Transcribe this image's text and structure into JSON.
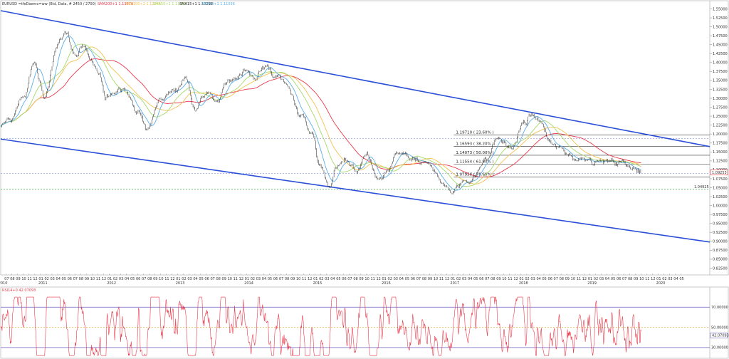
{
  "header": {
    "symbol_line": "EURUSD =tfeDaemo=ww (Bid, Data, # 2450 / 2700)",
    "sma200": "SMA200+1 1.13679",
    "sma100": "SMA100+1 1.12345",
    "sma50": "SMA50+1 1.11002",
    "sma15": "SMA15+1 1.10298",
    "sma10": "SMA10+1 1.11036",
    "rsi_label": "RSI14+0 42.07093"
  },
  "colors": {
    "price": "#1a1a1a",
    "sma200": "#e8394a",
    "sma100": "#f2c14e",
    "sma50": "#a6d96a",
    "sma15": "#5aaee8",
    "channel": "#2b4fd8",
    "rsi": "#e8394a",
    "fib": "#333333",
    "hline_blue": "#7d8fe0",
    "hline_green": "#3aa64a"
  },
  "chart_data": [
    {
      "type": "line",
      "title": "",
      "yaxis_ticks": [
        "1.55000",
        "1.52500",
        "1.50000",
        "1.47500",
        "1.45000",
        "1.42500",
        "1.40000",
        "1.37500",
        "1.35000",
        "1.32500",
        "1.30000",
        "1.27500",
        "1.25000",
        "1.22500",
        "1.20000",
        "1.17500",
        "1.15000",
        "1.12500",
        "1.10000",
        "1.07500",
        "1.05000",
        "1.02500",
        "1.00000",
        "0.97500",
        "0.95000",
        "0.92500",
        "0.90000",
        "0.87500",
        "0.85000",
        "0.82500"
      ],
      "ylim": [
        0.81,
        1.555
      ],
      "xlim": [
        2010.42,
        2020.75
      ],
      "year_labels": [
        "2010",
        "2011",
        "2012",
        "2013",
        "2014",
        "2015",
        "2016",
        "2017",
        "2018",
        "2019",
        "2020"
      ],
      "month_ticks": [
        "06",
        "07",
        "08",
        "09",
        "10",
        "11",
        "12",
        "01",
        "02",
        "03",
        "04",
        "05",
        "06",
        "07",
        "08",
        "09",
        "10",
        "11",
        "12",
        "01",
        "02",
        "03",
        "04",
        "05",
        "06",
        "07",
        "08",
        "09",
        "10",
        "11",
        "12",
        "01",
        "02",
        "03",
        "04",
        "05",
        "06",
        "07",
        "08",
        "09",
        "10",
        "11",
        "12",
        "01",
        "02",
        "03",
        "04",
        "05",
        "06",
        "07",
        "08",
        "09",
        "10",
        "11",
        "12",
        "01",
        "02",
        "03",
        "04",
        "05",
        "06",
        "07",
        "08",
        "09",
        "10",
        "11",
        "12",
        "01",
        "02",
        "03",
        "04",
        "05",
        "06",
        "07",
        "08",
        "09",
        "10",
        "11",
        "12",
        "01",
        "02",
        "03",
        "04",
        "05",
        "06",
        "07",
        "08",
        "09",
        "10",
        "11",
        "12",
        "01",
        "02",
        "03",
        "04",
        "05",
        "06",
        "07",
        "08",
        "09",
        "10",
        "11",
        "12",
        "01",
        "02",
        "03",
        "04",
        "05",
        "06",
        "07",
        "08",
        "09",
        "10",
        "11",
        "12",
        "01",
        "02",
        "03",
        "04",
        "05"
      ],
      "price_anchors": [
        [
          2010.42,
          1.22
        ],
        [
          2010.55,
          1.24
        ],
        [
          2010.75,
          1.3
        ],
        [
          2010.9,
          1.4
        ],
        [
          2011.0,
          1.33
        ],
        [
          2011.05,
          1.3
        ],
        [
          2011.3,
          1.48
        ],
        [
          2011.35,
          1.49
        ],
        [
          2011.5,
          1.42
        ],
        [
          2011.6,
          1.45
        ],
        [
          2011.85,
          1.36
        ],
        [
          2011.95,
          1.29
        ],
        [
          2012.05,
          1.32
        ],
        [
          2012.2,
          1.34
        ],
        [
          2012.4,
          1.27
        ],
        [
          2012.55,
          1.21
        ],
        [
          2012.75,
          1.3
        ],
        [
          2012.95,
          1.32
        ],
        [
          2013.1,
          1.36
        ],
        [
          2013.25,
          1.28
        ],
        [
          2013.45,
          1.32
        ],
        [
          2013.55,
          1.28
        ],
        [
          2013.75,
          1.35
        ],
        [
          2013.95,
          1.38
        ],
        [
          2014.1,
          1.36
        ],
        [
          2014.3,
          1.39
        ],
        [
          2014.45,
          1.36
        ],
        [
          2014.6,
          1.33
        ],
        [
          2014.8,
          1.25
        ],
        [
          2014.95,
          1.21
        ],
        [
          2015.05,
          1.12
        ],
        [
          2015.2,
          1.05
        ],
        [
          2015.3,
          1.1
        ],
        [
          2015.45,
          1.13
        ],
        [
          2015.6,
          1.09
        ],
        [
          2015.75,
          1.14
        ],
        [
          2015.9,
          1.06
        ],
        [
          2016.05,
          1.09
        ],
        [
          2016.2,
          1.14
        ],
        [
          2016.4,
          1.13
        ],
        [
          2016.55,
          1.11
        ],
        [
          2016.75,
          1.1
        ],
        [
          2016.9,
          1.05
        ],
        [
          2017.0,
          1.04
        ],
        [
          2017.2,
          1.07
        ],
        [
          2017.35,
          1.09
        ],
        [
          2017.5,
          1.14
        ],
        [
          2017.65,
          1.19
        ],
        [
          2017.85,
          1.16
        ],
        [
          2018.05,
          1.23
        ],
        [
          2018.15,
          1.25
        ],
        [
          2018.3,
          1.23
        ],
        [
          2018.4,
          1.18
        ],
        [
          2018.5,
          1.16
        ],
        [
          2018.65,
          1.15
        ],
        [
          2018.8,
          1.13
        ],
        [
          2018.95,
          1.14
        ],
        [
          2019.1,
          1.13
        ],
        [
          2019.3,
          1.12
        ],
        [
          2019.5,
          1.12
        ],
        [
          2019.65,
          1.11
        ],
        [
          2019.7,
          1.097
        ],
        [
          2019.75,
          1.09
        ]
      ],
      "hlines": [
        1.1879,
        1.0895,
        1.0456
      ],
      "hline_label_green": "1.04925",
      "current_price_label": "1.09253",
      "fib_levels": [
        {
          "label": "1.19710 ( 23.60% )",
          "y": 1.1971
        },
        {
          "label": "1.16593 ( 38.20% )",
          "y": 1.16593
        },
        {
          "label": "1.14073 ( 50.00% )",
          "y": 1.14073
        },
        {
          "label": "1.11554 ( 61.80% )",
          "y": 1.11554
        },
        {
          "label": "1.07956 ( 78.60% )",
          "y": 1.07956
        }
      ],
      "fib_x_start": 2017.02,
      "channel_upper": [
        [
          2010.42,
          1.545
        ],
        [
          2020.75,
          1.165
        ]
      ],
      "channel_lower": [
        [
          2010.42,
          1.186
        ],
        [
          2020.75,
          0.898
        ]
      ],
      "series": [
        {
          "values": "price"
        },
        {
          "values": "sma200"
        },
        {
          "values": "sma100"
        },
        {
          "values": "sma50"
        },
        {
          "values": "sma15"
        }
      ]
    },
    {
      "type": "line",
      "title": "",
      "ylim": [
        20,
        85
      ],
      "yaxis_ticks": [
        "70.00000",
        "50.00000",
        "30.00000"
      ],
      "reference_lines": [
        70,
        50,
        30
      ],
      "current_value_label": "42.07093",
      "series": [
        {
          "values": "rsi14"
        }
      ]
    }
  ]
}
